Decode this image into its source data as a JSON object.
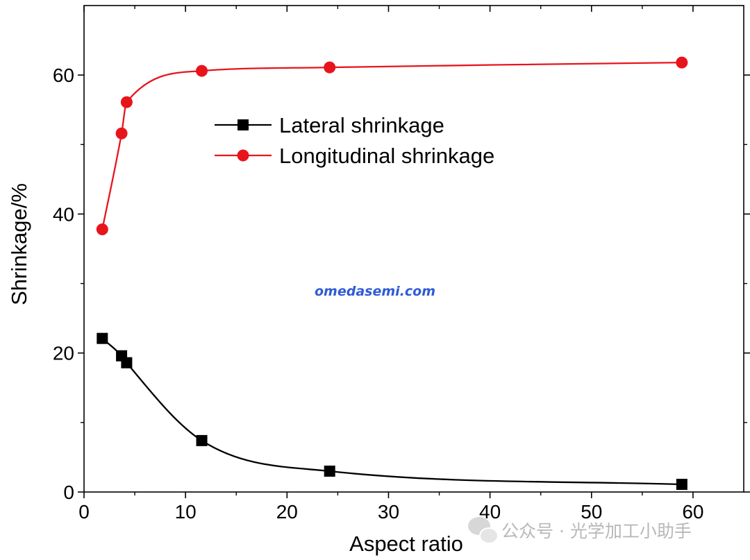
{
  "chart_data": {
    "type": "scatter",
    "xlabel": "Aspect ratio",
    "ylabel": "Shrinkage/%",
    "xlim": [
      0,
      65
    ],
    "ylim": [
      0,
      70
    ],
    "x_ticks": [
      0,
      10,
      20,
      30,
      40,
      50,
      60
    ],
    "y_ticks": [
      0,
      20,
      40,
      60
    ],
    "grid": false,
    "legend_position": "upper-center",
    "series": [
      {
        "name": "Lateral shrinkage",
        "marker": "square",
        "color": "#000000",
        "x": [
          1.8,
          3.7,
          4.2,
          11.6,
          24.2,
          58.9
        ],
        "y": [
          22.1,
          19.6,
          18.6,
          7.4,
          3.0,
          1.1
        ]
      },
      {
        "name": "Longitudinal shrinkage",
        "marker": "circle",
        "color": "#e8141c",
        "x": [
          1.8,
          3.7,
          4.2,
          11.6,
          24.2,
          58.9
        ],
        "y": [
          37.8,
          51.6,
          56.1,
          60.6,
          61.1,
          61.8
        ]
      }
    ]
  },
  "watermarks": {
    "site": "omedasemi.com",
    "account": "公众号 · 光学加工小助手"
  }
}
